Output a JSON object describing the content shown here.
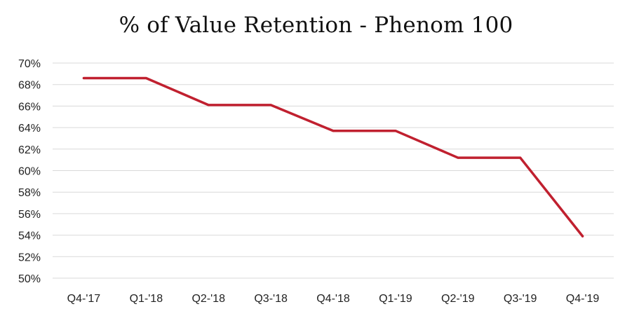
{
  "chart_data": {
    "type": "line",
    "title": "% of Value Retention - Phenom 100",
    "xlabel": "",
    "ylabel": "",
    "categories": [
      "Q4-'17",
      "Q1-'18",
      "Q2-'18",
      "Q3-'18",
      "Q4-'18",
      "Q1-'19",
      "Q2-'19",
      "Q3-'19",
      "Q4-'19"
    ],
    "series": [
      {
        "values": [
          68.6,
          68.6,
          66.1,
          66.1,
          63.7,
          63.7,
          61.2,
          61.2,
          53.9
        ],
        "color": "#c0202f"
      }
    ],
    "ylim": [
      50,
      70
    ],
    "yticks": [
      50,
      52,
      54,
      56,
      58,
      60,
      62,
      64,
      66,
      68,
      70
    ],
    "ytick_labels": [
      "50%",
      "52%",
      "54%",
      "56%",
      "58%",
      "60%",
      "62%",
      "64%",
      "66%",
      "68%",
      "70%"
    ],
    "grid": "horizontal",
    "legend": "none"
  }
}
